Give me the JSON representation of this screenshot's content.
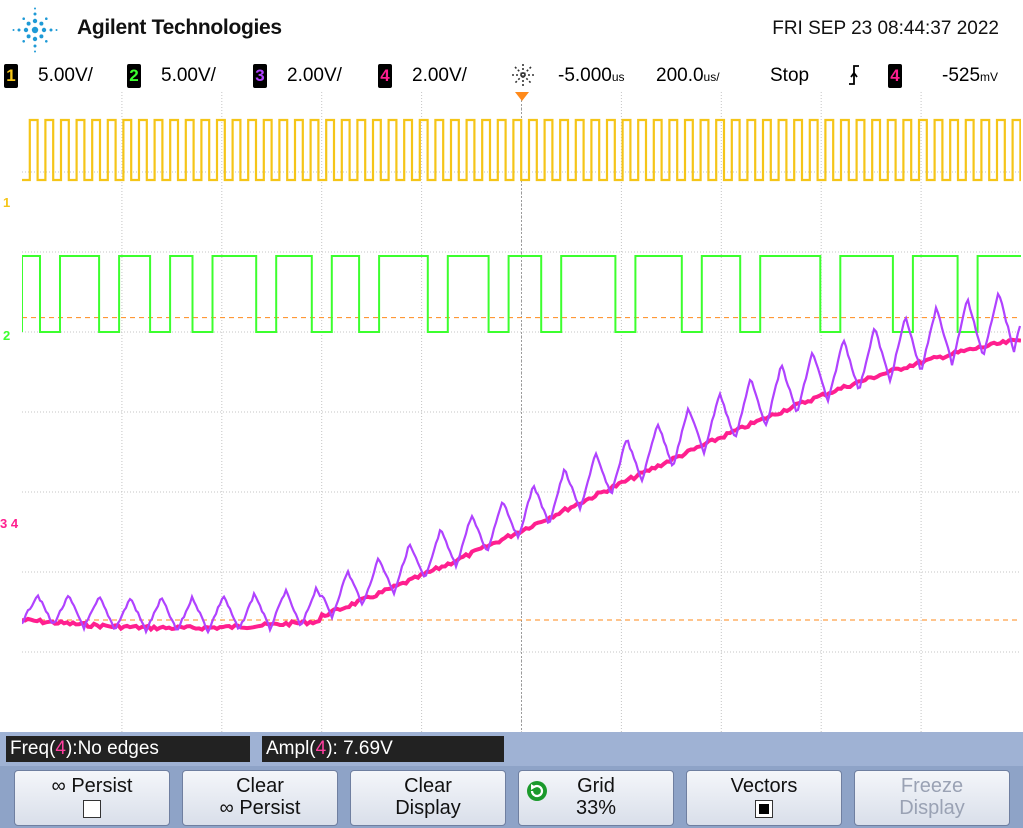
{
  "header": {
    "brand": "Agilent Technologies",
    "datetime": "FRI SEP 23 08:44:37 2022",
    "logo_icon": "agilent-spark-icon"
  },
  "channels": [
    {
      "num": "1",
      "scale": "5.00V/",
      "color": "#f5c518"
    },
    {
      "num": "2",
      "scale": "5.00V/",
      "color": "#3cff2e"
    },
    {
      "num": "3",
      "scale": "2.00V/",
      "color": "#b042ff"
    },
    {
      "num": "4",
      "scale": "2.00V/",
      "color": "#ff1f8f"
    }
  ],
  "timebase": {
    "delay": "-5.000",
    "delay_unit": "us",
    "scale": "200.0",
    "scale_unit": "us/"
  },
  "run_state": "Stop",
  "trigger": {
    "slope_icon": "rising-edge-icon",
    "source": "4",
    "level": "-525",
    "level_unit": "mV"
  },
  "markers": {
    "ch1": "1",
    "ch2": "2",
    "ch34": "3 4"
  },
  "measurements": {
    "freq_label": "Freq(",
    "freq_ch": "4",
    "freq_value": "):No edges",
    "ampl_label": "Ampl(",
    "ampl_ch": "4",
    "ampl_value": "): 7.69V"
  },
  "softkeys": {
    "persist_line1": "∞ Persist",
    "clear_persist_line1": "Clear",
    "clear_persist_line2": "∞ Persist",
    "clear_display_line1": "Clear",
    "clear_display_line2": "Display",
    "grid_line1": "Grid",
    "grid_line2": "33%",
    "vectors_line1": "Vectors",
    "freeze_line1": "Freeze",
    "freeze_line2": "Display"
  },
  "chart_data": {
    "type": "line",
    "xlabel": "",
    "ylabel": "",
    "grid": true,
    "x_divisions": 10,
    "y_divisions": 8,
    "series": [
      {
        "channel": "1",
        "color": "#f5c518",
        "shape": "square-wave",
        "high_div": 0.35,
        "low_div": 1.1
      },
      {
        "channel": "2",
        "color": "#3cff2e",
        "shape": "square-wave",
        "high_div": 2.05,
        "low_div": 3.0
      },
      {
        "channel": "3",
        "color": "#b042ff",
        "shape": "triangle-ripple-ramp"
      },
      {
        "channel": "4",
        "color": "#ff1f8f",
        "shape": "smooth-ramp"
      }
    ]
  }
}
